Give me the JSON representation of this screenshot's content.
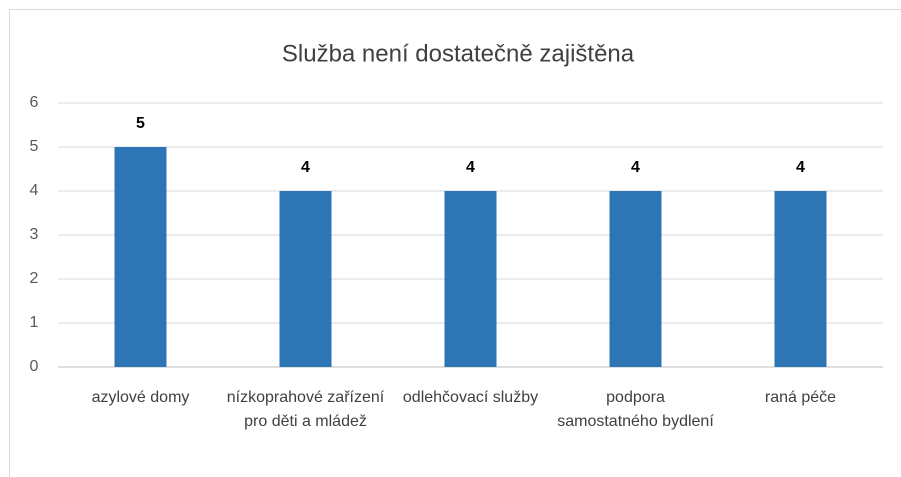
{
  "chart_data": {
    "type": "bar",
    "title": "Služba není dostatečně zajištěna",
    "categories": [
      "azylové domy",
      "nízkoprahové zařízení pro děti a mládež",
      "odlehčovací služby",
      "podpora samostatného bydlení",
      "raná péče"
    ],
    "values": [
      5,
      4,
      4,
      4,
      4
    ],
    "color": "#2e75b6",
    "ylim": [
      0,
      6
    ],
    "yticks": [
      0,
      1,
      2,
      3,
      4,
      5,
      6
    ],
    "grid": true
  }
}
